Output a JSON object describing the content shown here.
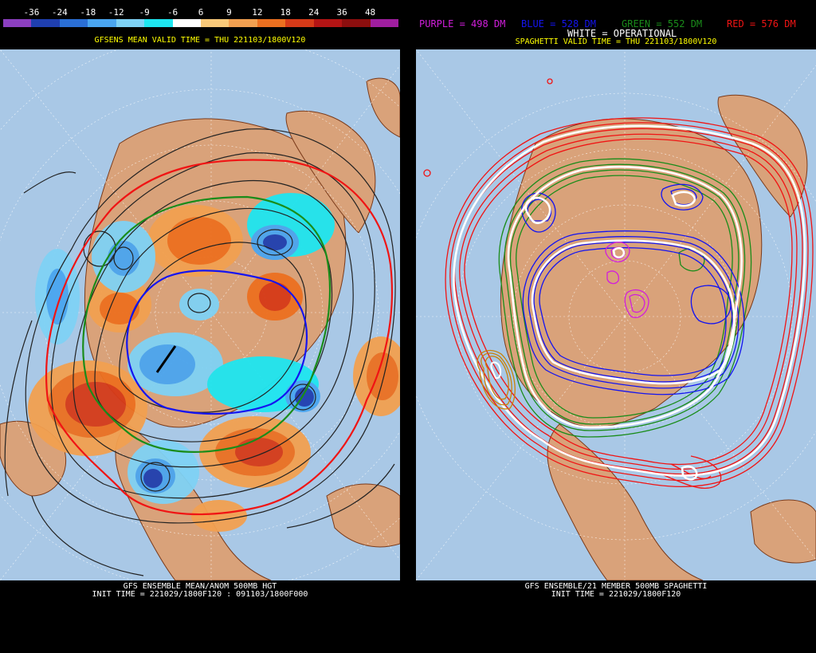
{
  "left": {
    "colorbar": {
      "labels": [
        "-36",
        "-24",
        "-18",
        "-12",
        "-9",
        "-6",
        "6",
        "9",
        "12",
        "18",
        "24",
        "36",
        "48"
      ],
      "colors": [
        "#8c3fc0",
        "#1f3fb0",
        "#2a6fd6",
        "#4aa6f0",
        "#7fd2f5",
        "#1ee6f0",
        "#ffffff",
        "#f8c97a",
        "#f2a050",
        "#ec7020",
        "#d63a18",
        "#b41414",
        "#8c0e0e",
        "#a01ea0"
      ]
    },
    "header": "GFSENS MEAN VALID TIME = THU 221103/1800V120",
    "footer_line1": "GFS ENSEMBLE MEAN/ANOM 500MB HGT",
    "footer_line2": "INIT TIME = 221029/1800F120 : 091103/1800F000"
  },
  "right": {
    "legend": {
      "purple": "PURPLE = 498 DM",
      "blue": "BLUE = 528 DM",
      "green": "GREEN = 552 DM",
      "red": "RED = 576 DM",
      "white": "WHITE = OPERATIONAL"
    },
    "colors": {
      "purple": "#d21edc",
      "blue": "#1414f0",
      "green": "#1a8c1a",
      "red": "#f01414",
      "white": "#ffffff",
      "orange": "#c8820a"
    },
    "header": "SPAGHETTI VALID TIME = THU 221103/1800V120",
    "footer_line1": "GFS ENSEMBLE/21 MEMBER 500MB SPAGHETTI",
    "footer_line2": "INIT TIME = 221029/1800F120"
  },
  "map_colors": {
    "ocean": "#a9c8e6",
    "land": "#d9a27a",
    "border": "#7a3a1a",
    "grid": "#ffffff"
  }
}
